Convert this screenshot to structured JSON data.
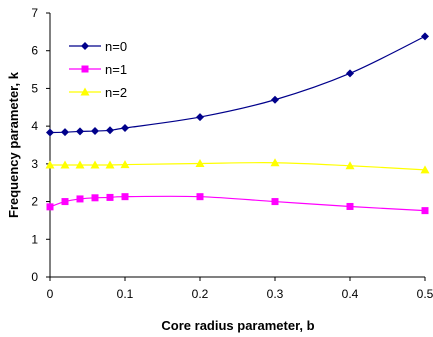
{
  "chart_data": {
    "type": "line",
    "title": "",
    "xlabel": "Core radius parameter, b",
    "ylabel": "Frequency parameter, k",
    "xlim": [
      0,
      0.5
    ],
    "ylim": [
      0,
      7
    ],
    "xticks": [
      "0",
      "0.1",
      "0.2",
      "0.3",
      "0.4",
      "0.5"
    ],
    "xtick_values": [
      0,
      0.1,
      0.2,
      0.3,
      0.4,
      0.5
    ],
    "yticks": [
      "0",
      "1",
      "2",
      "3",
      "4",
      "5",
      "6",
      "7"
    ],
    "ytick_values": [
      0,
      1,
      2,
      3,
      4,
      5,
      6,
      7
    ],
    "grid": false,
    "legend": "top-left",
    "series": [
      {
        "name": "n=0",
        "color": "#00008B",
        "marker": "diamond",
        "x": [
          0,
          0.02,
          0.04,
          0.06,
          0.08,
          0.1,
          0.2,
          0.3,
          0.4,
          0.5
        ],
        "y": [
          3.83,
          3.84,
          3.86,
          3.87,
          3.89,
          3.95,
          4.24,
          4.7,
          5.4,
          6.38
        ]
      },
      {
        "name": "n=1",
        "color": "#FF00FF",
        "marker": "square",
        "x": [
          0,
          0.02,
          0.04,
          0.06,
          0.08,
          0.1,
          0.2,
          0.3,
          0.4,
          0.5
        ],
        "y": [
          1.86,
          2.0,
          2.07,
          2.1,
          2.11,
          2.13,
          2.13,
          2.0,
          1.87,
          1.76
        ]
      },
      {
        "name": "n=2",
        "color": "#FFFF00",
        "marker": "triangle",
        "x": [
          0,
          0.02,
          0.04,
          0.06,
          0.08,
          0.1,
          0.2,
          0.3,
          0.4,
          0.5
        ],
        "y": [
          2.97,
          2.97,
          2.97,
          2.97,
          2.97,
          2.98,
          3.01,
          3.03,
          2.95,
          2.84
        ]
      }
    ]
  }
}
